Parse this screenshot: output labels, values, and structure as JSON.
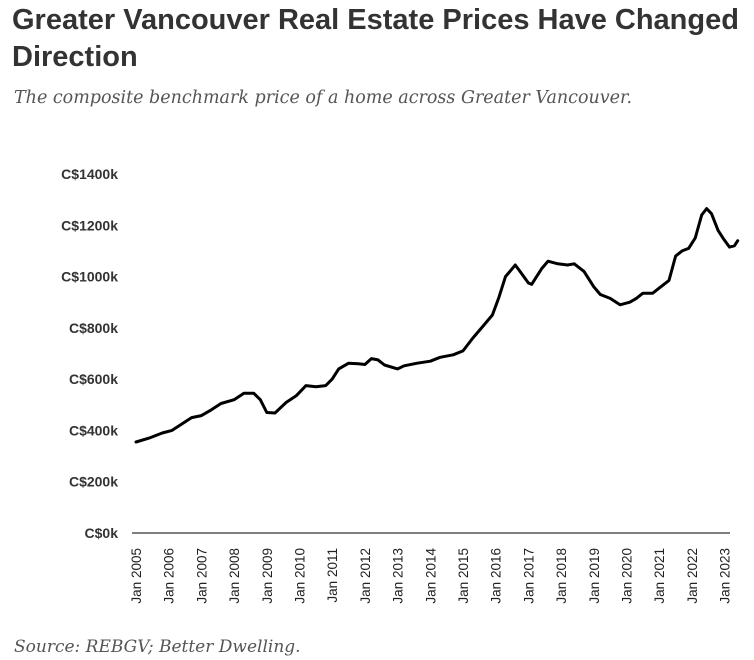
{
  "chart_data": {
    "type": "line",
    "title": "Greater Vancouver Real Estate Prices Have Changed Direction",
    "subtitle": "The composite benchmark price of a home across Greater Vancouver.",
    "source": "Source: REBGV; Better Dwelling.",
    "xlabel": "",
    "ylabel": "",
    "ylim": [
      0,
      1400
    ],
    "xlim": [
      2005,
      2023.4
    ],
    "y_ticks": [
      {
        "v": 0,
        "label": "C$0k"
      },
      {
        "v": 200,
        "label": "C$200k"
      },
      {
        "v": 400,
        "label": "C$400k"
      },
      {
        "v": 600,
        "label": "C$600k"
      },
      {
        "v": 800,
        "label": "C$800k"
      },
      {
        "v": 1000,
        "label": "C$1000k"
      },
      {
        "v": 1200,
        "label": "C$1200k"
      },
      {
        "v": 1400,
        "label": "C$1400k"
      }
    ],
    "x_ticks": [
      {
        "v": 2005,
        "label": "Jan 2005"
      },
      {
        "v": 2006,
        "label": "Jan 2006"
      },
      {
        "v": 2007,
        "label": "Jan 2007"
      },
      {
        "v": 2008,
        "label": "Jan 2008"
      },
      {
        "v": 2009,
        "label": "Jan 2009"
      },
      {
        "v": 2010,
        "label": "Jan 2010"
      },
      {
        "v": 2011,
        "label": "Jan 2011"
      },
      {
        "v": 2012,
        "label": "Jan 2012"
      },
      {
        "v": 2013,
        "label": "Jan 2013"
      },
      {
        "v": 2014,
        "label": "Jan 2014"
      },
      {
        "v": 2015,
        "label": "Jan 2015"
      },
      {
        "v": 2016,
        "label": "Jan 2016"
      },
      {
        "v": 2017,
        "label": "Jan 2017"
      },
      {
        "v": 2018,
        "label": "Jan 2018"
      },
      {
        "v": 2019,
        "label": "Jan 2019"
      },
      {
        "v": 2020,
        "label": "Jan 2020"
      },
      {
        "v": 2021,
        "label": "Jan 2021"
      },
      {
        "v": 2022,
        "label": "Jan 2022"
      },
      {
        "v": 2023,
        "label": "Jan 2023"
      }
    ],
    "series": [
      {
        "name": "Composite benchmark price (C$k)",
        "color": "#000000",
        "points": [
          [
            2005.0,
            355
          ],
          [
            2005.4,
            370
          ],
          [
            2005.8,
            390
          ],
          [
            2006.1,
            400
          ],
          [
            2006.4,
            425
          ],
          [
            2006.7,
            450
          ],
          [
            2007.0,
            458
          ],
          [
            2007.3,
            480
          ],
          [
            2007.6,
            505
          ],
          [
            2008.0,
            520
          ],
          [
            2008.3,
            545
          ],
          [
            2008.6,
            545
          ],
          [
            2008.8,
            520
          ],
          [
            2009.0,
            470
          ],
          [
            2009.25,
            468
          ],
          [
            2009.6,
            510
          ],
          [
            2009.9,
            535
          ],
          [
            2010.2,
            575
          ],
          [
            2010.5,
            570
          ],
          [
            2010.8,
            575
          ],
          [
            2011.0,
            600
          ],
          [
            2011.2,
            640
          ],
          [
            2011.5,
            662
          ],
          [
            2011.8,
            660
          ],
          [
            2012.0,
            657
          ],
          [
            2012.2,
            680
          ],
          [
            2012.4,
            675
          ],
          [
            2012.6,
            655
          ],
          [
            2013.0,
            640
          ],
          [
            2013.2,
            652
          ],
          [
            2013.6,
            662
          ],
          [
            2014.0,
            670
          ],
          [
            2014.3,
            685
          ],
          [
            2014.7,
            695
          ],
          [
            2015.0,
            710
          ],
          [
            2015.3,
            760
          ],
          [
            2015.6,
            805
          ],
          [
            2015.9,
            850
          ],
          [
            2016.1,
            920
          ],
          [
            2016.3,
            1000
          ],
          [
            2016.6,
            1045
          ],
          [
            2016.8,
            1010
          ],
          [
            2017.0,
            975
          ],
          [
            2017.1,
            970
          ],
          [
            2017.4,
            1030
          ],
          [
            2017.6,
            1060
          ],
          [
            2017.9,
            1050
          ],
          [
            2018.2,
            1045
          ],
          [
            2018.4,
            1050
          ],
          [
            2018.7,
            1020
          ],
          [
            2019.0,
            960
          ],
          [
            2019.2,
            930
          ],
          [
            2019.5,
            915
          ],
          [
            2019.8,
            890
          ],
          [
            2020.1,
            900
          ],
          [
            2020.3,
            915
          ],
          [
            2020.5,
            935
          ],
          [
            2020.8,
            935
          ],
          [
            2021.0,
            955
          ],
          [
            2021.3,
            985
          ],
          [
            2021.5,
            1080
          ],
          [
            2021.7,
            1100
          ],
          [
            2021.9,
            1110
          ],
          [
            2022.1,
            1150
          ],
          [
            2022.3,
            1240
          ],
          [
            2022.45,
            1265
          ],
          [
            2022.6,
            1245
          ],
          [
            2022.8,
            1180
          ],
          [
            2022.95,
            1150
          ],
          [
            2023.15,
            1115
          ],
          [
            2023.3,
            1120
          ],
          [
            2023.4,
            1140
          ]
        ]
      }
    ],
    "grid": false,
    "legend": "none"
  }
}
